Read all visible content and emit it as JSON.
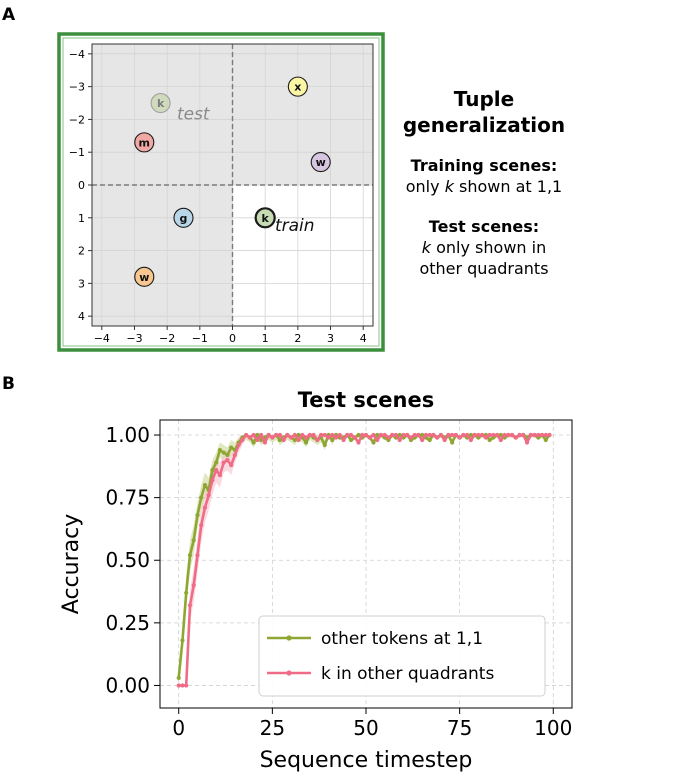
{
  "panel_a": {
    "label": "A",
    "heading": [
      "Tuple",
      "generalization"
    ],
    "training_title": "Training scenes:",
    "training_text": {
      "pre": "only ",
      "token": "k",
      "post": " shown at 1,1"
    },
    "test_title": "Test scenes:",
    "test_text_1": {
      "token": "k",
      "post": " only shown in"
    },
    "test_text_2": "other quadrants",
    "colors": {
      "frame": "#3c8f3c",
      "shade": "#e6e6e6"
    }
  },
  "panel_b": {
    "label": "B"
  },
  "chart_data": [
    {
      "type": "scatter",
      "title": "",
      "xlim": [
        -4.3,
        4.3
      ],
      "ylim": [
        -4.3,
        4.3
      ],
      "y_inverted": true,
      "x_ticks": [
        -4,
        -3,
        -2,
        -1,
        0,
        1,
        2,
        3,
        4
      ],
      "y_ticks": [
        -4,
        -3,
        -2,
        -1,
        0,
        1,
        2,
        3,
        4
      ],
      "shaded_quadrants": [
        "top-left",
        "top-right",
        "bottom-left"
      ],
      "tokens": [
        {
          "label": "k",
          "x": -2.2,
          "y": -2.5,
          "color": "#c9d7b0",
          "faded": true
        },
        {
          "label": "m",
          "x": -2.7,
          "y": -1.3,
          "color": "#f2a9a5"
        },
        {
          "label": "x",
          "x": 2.0,
          "y": -3.0,
          "color": "#fbf6a6"
        },
        {
          "label": "w",
          "x": 2.7,
          "y": -0.7,
          "color": "#d6c6e0"
        },
        {
          "label": "g",
          "x": -1.5,
          "y": 1.0,
          "color": "#b9d6e8"
        },
        {
          "label": "k",
          "x": 1.0,
          "y": 1.0,
          "color": "#c6dbb4",
          "bold_ring": true
        },
        {
          "label": "w",
          "x": -2.7,
          "y": 2.8,
          "color": "#f7c78f"
        }
      ],
      "annotations": [
        {
          "text": "test",
          "x": -1.7,
          "y": -2.0,
          "color": "#8a8a8a"
        },
        {
          "text": "train",
          "x": 1.3,
          "y": 1.4,
          "color": "#111111"
        }
      ]
    },
    {
      "type": "line",
      "title": "Test scenes",
      "xlabel": "Sequence timestep",
      "ylabel": "Accuracy",
      "xlim": [
        -5,
        105
      ],
      "ylim": [
        -0.09,
        1.06
      ],
      "x_ticks": [
        0,
        25,
        50,
        75,
        100
      ],
      "y_ticks": [
        "0.00",
        "0.25",
        "0.50",
        "0.75",
        "1.00"
      ],
      "grid": true,
      "legend_position": "lower-right",
      "series": [
        {
          "name": "other tokens at 1,1",
          "color": "#8ea732",
          "band_color": "#c7d68f",
          "values": [
            0.03,
            0.18,
            0.37,
            0.52,
            0.58,
            0.68,
            0.75,
            0.8,
            0.78,
            0.86,
            0.89,
            0.94,
            0.93,
            0.92,
            0.95,
            0.94,
            0.97,
            0.99,
            1.0,
            0.99,
            0.97,
            1.0,
            0.98,
            0.99,
            1.0,
            0.99,
            1.0,
            0.98,
            0.99,
            1.0,
            0.99,
            0.98,
            1.0,
            0.99,
            0.97,
            1.0,
            0.99,
            0.98,
            0.99,
            0.96,
            1.0,
            0.98,
            1.0,
            0.99,
            0.99,
            1.0,
            0.98,
            0.99,
            1.0,
            0.99,
            1.0,
            0.99,
            0.97,
            1.0,
            1.0,
            0.99,
            0.98,
            1.0,
            0.99,
            1.0,
            0.99,
            1.0,
            0.98,
            0.99,
            1.0,
            1.0,
            0.99,
            0.98,
            1.0,
            0.99,
            1.0,
            0.99,
            1.0,
            0.97,
            1.0,
            0.99,
            1.0,
            0.99,
            1.0,
            1.0,
            0.99,
            1.0,
            1.0,
            0.98,
            0.99,
            1.0,
            1.0,
            0.99,
            1.0,
            1.0,
            0.99,
            1.0,
            1.0,
            0.99,
            1.0,
            1.0,
            0.99,
            1.0,
            0.98,
            1.0
          ],
          "band": [
            0.0,
            0.04,
            0.07,
            0.06,
            0.06,
            0.05,
            0.05,
            0.05,
            0.05,
            0.04,
            0.04,
            0.03,
            0.03,
            0.03,
            0.03,
            0.03,
            0.02,
            0.02,
            0.02,
            0.02,
            0.02,
            0.02,
            0.02,
            0.02,
            0.02,
            0.02,
            0.02,
            0.02,
            0.02,
            0.02,
            0.02,
            0.02,
            0.02,
            0.02,
            0.02,
            0.02,
            0.02,
            0.02,
            0.02,
            0.02,
            0.01,
            0.02,
            0.01,
            0.01,
            0.01,
            0.01,
            0.01,
            0.01,
            0.01,
            0.01,
            0.01,
            0.01,
            0.01,
            0.01,
            0.01,
            0.01,
            0.01,
            0.01,
            0.01,
            0.01,
            0.01,
            0.01,
            0.01,
            0.01,
            0.01,
            0.01,
            0.01,
            0.01,
            0.01,
            0.01,
            0.01,
            0.01,
            0.01,
            0.01,
            0.01,
            0.01,
            0.01,
            0.01,
            0.01,
            0.01,
            0.01,
            0.01,
            0.01,
            0.01,
            0.01,
            0.01,
            0.01,
            0.01,
            0.01,
            0.01,
            0.01,
            0.01,
            0.01,
            0.01,
            0.01,
            0.01,
            0.01,
            0.01,
            0.01,
            0.01
          ]
        },
        {
          "name": "k in other quadrants",
          "color": "#f06b86",
          "band_color": "#f6bcc8",
          "values": [
            0.0,
            0.0,
            0.0,
            0.32,
            0.4,
            0.52,
            0.64,
            0.71,
            0.76,
            0.82,
            0.86,
            0.84,
            0.89,
            0.9,
            0.88,
            0.92,
            0.96,
            0.98,
            1.0,
            0.99,
            1.0,
            0.98,
            1.0,
            0.97,
            1.0,
            0.99,
            1.0,
            1.0,
            0.98,
            1.0,
            0.99,
            1.0,
            0.98,
            1.0,
            0.99,
            1.0,
            1.0,
            0.98,
            1.0,
            1.0,
            0.99,
            1.0,
            0.99,
            1.0,
            0.98,
            1.0,
            1.0,
            0.99,
            0.97,
            1.0,
            1.0,
            0.99,
            1.0,
            0.98,
            1.0,
            1.0,
            0.99,
            1.0,
            1.0,
            0.98,
            1.0,
            1.0,
            0.99,
            1.0,
            1.0,
            0.98,
            1.0,
            1.0,
            1.0,
            0.99,
            1.0,
            0.98,
            1.0,
            1.0,
            1.0,
            0.99,
            1.0,
            1.0,
            0.98,
            1.0,
            1.0,
            1.0,
            0.99,
            1.0,
            1.0,
            1.0,
            0.98,
            1.0,
            1.0,
            1.0,
            0.99,
            1.0,
            1.0,
            0.97,
            1.0,
            1.0,
            1.0,
            1.0,
            1.0,
            1.0
          ],
          "band": [
            0.0,
            0.0,
            0.0,
            0.06,
            0.07,
            0.07,
            0.07,
            0.06,
            0.06,
            0.06,
            0.05,
            0.05,
            0.04,
            0.04,
            0.04,
            0.03,
            0.03,
            0.02,
            0.01,
            0.01,
            0.01,
            0.01,
            0.01,
            0.01,
            0.01,
            0.01,
            0.01,
            0.01,
            0.01,
            0.01,
            0.01,
            0.01,
            0.01,
            0.01,
            0.01,
            0.01,
            0.01,
            0.01,
            0.01,
            0.01,
            0.01,
            0.01,
            0.01,
            0.01,
            0.01,
            0.01,
            0.01,
            0.01,
            0.01,
            0.01,
            0.01,
            0.01,
            0.01,
            0.01,
            0.01,
            0.01,
            0.01,
            0.01,
            0.01,
            0.01,
            0.01,
            0.01,
            0.01,
            0.01,
            0.01,
            0.01,
            0.01,
            0.01,
            0.01,
            0.01,
            0.01,
            0.01,
            0.01,
            0.01,
            0.01,
            0.01,
            0.01,
            0.01,
            0.01,
            0.01,
            0.01,
            0.01,
            0.01,
            0.01,
            0.01,
            0.01,
            0.01,
            0.01,
            0.01,
            0.01,
            0.01,
            0.01,
            0.01,
            0.01,
            0.01,
            0.01,
            0.01,
            0.01,
            0.01,
            0.01
          ]
        }
      ]
    }
  ]
}
